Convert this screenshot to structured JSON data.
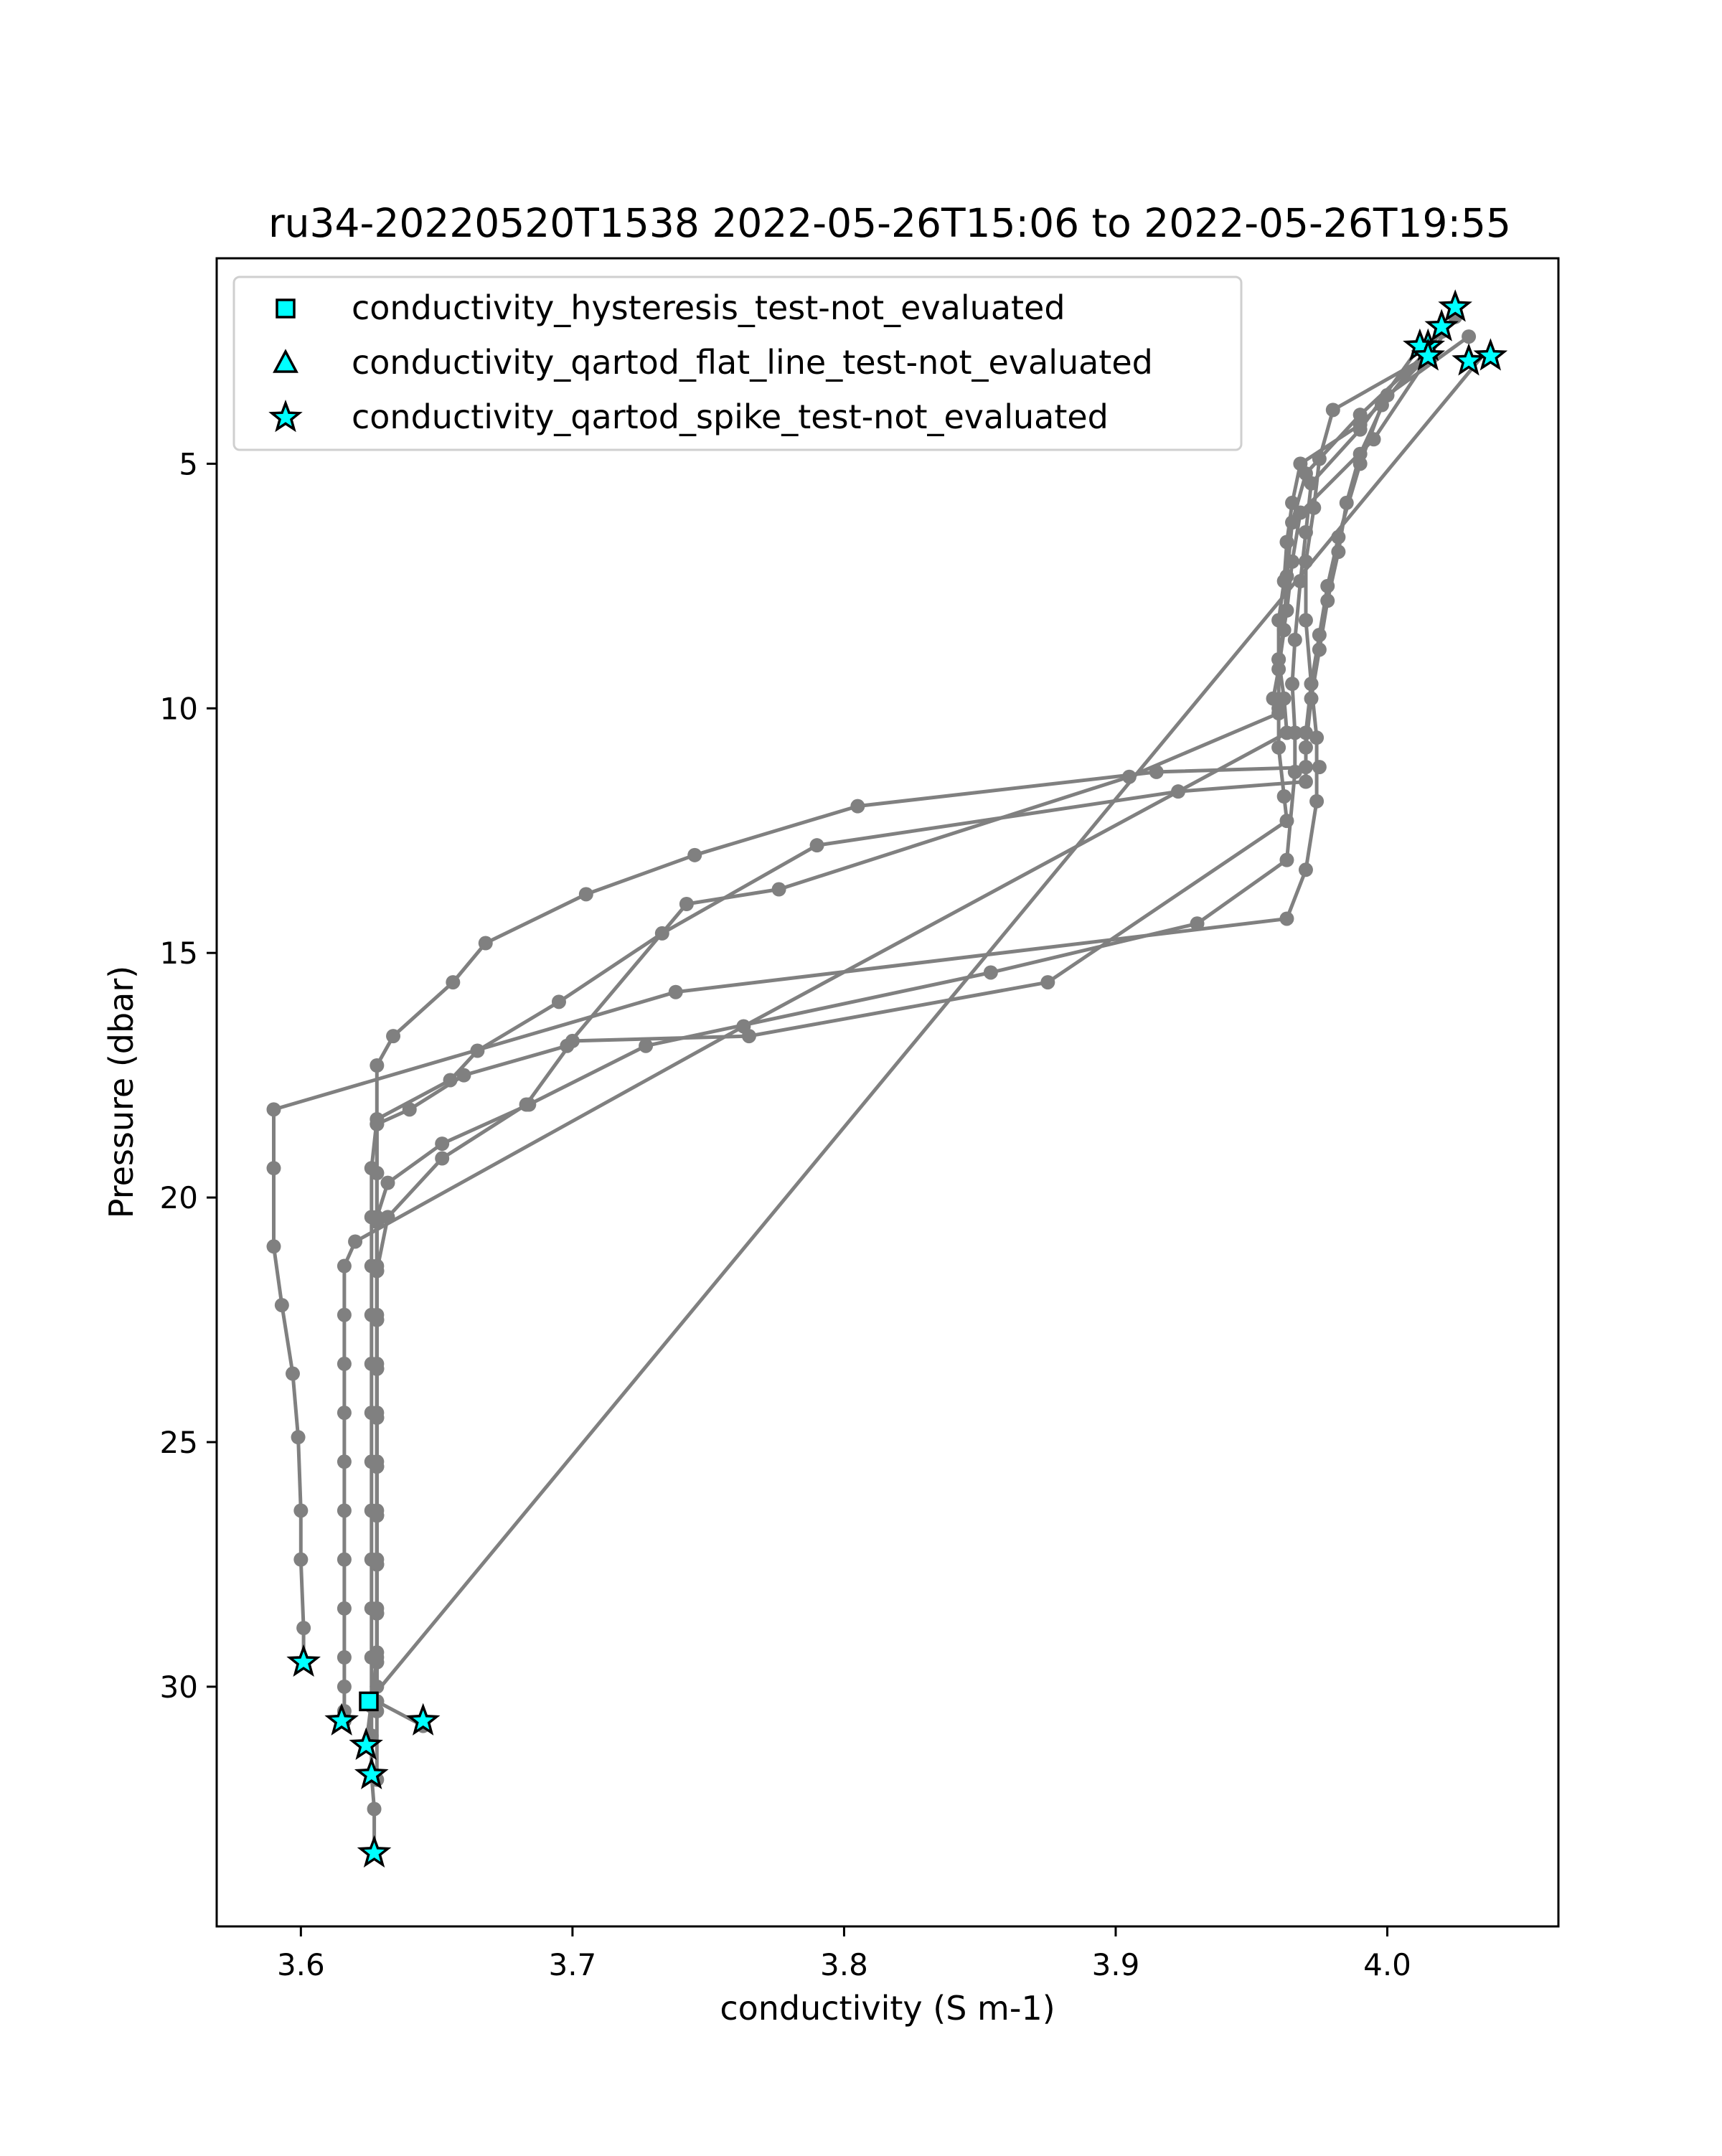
{
  "chart_data": {
    "type": "line",
    "title": "ru34-20220520T1538 2022-05-26T15:06 to 2022-05-26T19:55",
    "xlabel": "conductivity (S m-1)",
    "ylabel": "Pressure (dbar)",
    "xlim": [
      3.569,
      4.063
    ],
    "ylim": [
      34.9,
      0.8
    ],
    "y_inverted": true,
    "xticks": [
      "3.6",
      "3.7",
      "3.8",
      "3.9",
      "4.0"
    ],
    "xtick_values": [
      3.6,
      3.7,
      3.8,
      3.9,
      4.0
    ],
    "yticks": [
      "5",
      "10",
      "15",
      "20",
      "25",
      "30"
    ],
    "ytick_values": [
      5,
      10,
      15,
      20,
      25,
      30
    ],
    "grid": false,
    "legend_position": "top-left",
    "colors": {
      "line": "#808080",
      "marker_fill": "#00ffff",
      "marker_edge": "#000000",
      "axes": "#000000"
    },
    "profile_series": [
      {
        "x": [
          4.02,
          3.998,
          3.99,
          3.982,
          3.978,
          3.975,
          3.972,
          3.97,
          3.97,
          3.975,
          3.915,
          3.805,
          3.745,
          3.705,
          3.668,
          3.656,
          3.634,
          3.628,
          3.628,
          3.628,
          3.628,
          3.628,
          3.628,
          3.628,
          3.628,
          3.628,
          3.628,
          3.628,
          3.628,
          3.628,
          3.628,
          3.628
        ],
        "y": [
          2.3,
          3.8,
          5.0,
          6.5,
          7.5,
          8.5,
          9.5,
          10.5,
          11.2,
          11.2,
          11.3,
          12.0,
          13.0,
          13.8,
          14.8,
          15.6,
          16.7,
          17.3,
          18.5,
          19.5,
          20.5,
          21.5,
          22.5,
          23.5,
          24.5,
          25.5,
          26.5,
          27.5,
          28.5,
          29.3,
          30.3,
          31.9
        ]
      },
      {
        "x": [
          4.03,
          4.0,
          3.99,
          3.985,
          3.982,
          3.978,
          3.975,
          3.972,
          3.97,
          3.97,
          3.923,
          3.79,
          3.733,
          3.695,
          3.665,
          3.655,
          3.628,
          3.626,
          3.626,
          3.626,
          3.626,
          3.626,
          3.626,
          3.626,
          3.626,
          3.626,
          3.626,
          3.626,
          3.626,
          3.626,
          3.626,
          3.627,
          3.627
        ],
        "y": [
          2.4,
          3.6,
          4.8,
          5.8,
          6.8,
          7.8,
          8.8,
          9.8,
          10.8,
          11.5,
          11.7,
          12.8,
          14.6,
          16.0,
          17.0,
          17.6,
          18.4,
          19.4,
          20.4,
          21.4,
          22.4,
          23.4,
          24.4,
          25.4,
          26.4,
          27.4,
          28.4,
          29.4,
          30.4,
          31.0,
          31.8,
          32.5,
          33.4
        ]
      },
      {
        "x": [
          4.015,
          3.99,
          3.97,
          3.965,
          3.963,
          3.962,
          3.96,
          3.958,
          3.96,
          3.905,
          3.776,
          3.742,
          3.698,
          3.66,
          3.64,
          3.628,
          3.628,
          3.628,
          3.628,
          3.628,
          3.628,
          3.628,
          3.628,
          3.628,
          3.628,
          3.628,
          3.628,
          3.628
        ],
        "y": [
          2.7,
          4.0,
          5.2,
          6.2,
          7.3,
          8.4,
          9.2,
          9.8,
          10.1,
          11.4,
          13.7,
          14.0,
          16.9,
          17.5,
          18.2,
          18.5,
          19.5,
          20.5,
          21.5,
          22.5,
          23.5,
          24.5,
          25.5,
          26.5,
          27.5,
          28.5,
          29.5,
          30.5
        ]
      },
      {
        "x": [
          4.025,
          3.995,
          3.968,
          3.965,
          3.963,
          3.96,
          3.96,
          3.96,
          3.962,
          3.963,
          3.875,
          3.765,
          3.7,
          3.683,
          3.652,
          3.632,
          3.628,
          3.628,
          3.628,
          3.628,
          3.628,
          3.628,
          3.628,
          3.628,
          3.628,
          3.628,
          3.628,
          3.645
        ],
        "y": [
          2.0,
          4.5,
          6.0,
          7.0,
          8.0,
          9.0,
          10.0,
          10.8,
          11.8,
          12.3,
          15.6,
          16.7,
          16.8,
          18.1,
          19.2,
          20.4,
          21.5,
          22.5,
          23.5,
          24.5,
          25.5,
          26.5,
          27.5,
          28.5,
          29.5,
          30.0,
          30.3,
          30.8
        ]
      },
      {
        "x": [
          4.015,
          3.99,
          3.968,
          3.965,
          3.963,
          3.962,
          3.96,
          3.96,
          3.962,
          3.963,
          3.763,
          3.62,
          3.616,
          3.616,
          3.616,
          3.616,
          3.616,
          3.616,
          3.616,
          3.616,
          3.616,
          3.616,
          3.616,
          3.616
        ],
        "y": [
          2.8,
          4.2,
          5.0,
          5.8,
          6.6,
          7.4,
          8.2,
          9.0,
          9.8,
          10.5,
          16.5,
          20.9,
          21.4,
          22.4,
          23.4,
          24.4,
          25.4,
          26.4,
          27.4,
          28.4,
          29.4,
          30.0,
          30.5,
          30.7
        ]
      },
      {
        "x": [
          4.012,
          3.99,
          3.972,
          3.97,
          3.968,
          3.966,
          3.965,
          3.966,
          3.966,
          3.963,
          3.93,
          3.854,
          3.727,
          3.684,
          3.652,
          3.632,
          3.628,
          3.628,
          3.628,
          3.628,
          3.628,
          3.628,
          3.628,
          3.628,
          3.628,
          3.628,
          3.624
        ],
        "y": [
          2.6,
          4.3,
          5.4,
          6.4,
          7.4,
          8.6,
          9.5,
          10.5,
          11.3,
          13.1,
          14.4,
          15.4,
          16.9,
          18.1,
          18.9,
          19.7,
          20.4,
          21.4,
          22.4,
          23.4,
          24.4,
          25.4,
          26.4,
          27.4,
          28.4,
          29.4,
          31.2
        ]
      },
      {
        "x": [
          4.015,
          3.98,
          3.975,
          3.973,
          3.97,
          3.97,
          3.972,
          3.974,
          3.974,
          3.97,
          3.963,
          3.738,
          3.59,
          3.59,
          3.59,
          3.593,
          3.597,
          3.599,
          3.6,
          3.6,
          3.601,
          3.601
        ],
        "y": [
          2.8,
          3.9,
          4.9,
          5.9,
          7.0,
          8.2,
          9.5,
          10.6,
          11.9,
          13.3,
          14.3,
          15.8,
          18.2,
          19.4,
          21.0,
          22.2,
          23.6,
          24.9,
          26.4,
          27.4,
          28.8,
          29.5
        ]
      }
    ],
    "connector_line": {
      "x": [
        3.625,
        4.035
      ],
      "y": [
        30.3,
        2.8
      ]
    },
    "flag_series": [
      {
        "name": "conductivity_hysteresis_test-not_evaluated",
        "marker": "square",
        "x": [
          3.625
        ],
        "y": [
          30.3
        ]
      },
      {
        "name": "conductivity_qartod_flat_line_test-not_evaluated",
        "marker": "triangle",
        "x": [],
        "y": []
      },
      {
        "name": "conductivity_qartod_spike_test-not_evaluated",
        "marker": "star",
        "x": [
          4.025,
          4.02,
          4.015,
          4.012,
          4.015,
          4.03,
          4.038,
          3.601,
          3.615,
          3.645,
          3.624,
          3.626,
          3.627
        ],
        "y": [
          1.8,
          2.2,
          2.6,
          2.6,
          2.8,
          2.9,
          2.8,
          29.5,
          30.7,
          30.7,
          31.2,
          31.8,
          33.4
        ]
      }
    ]
  }
}
